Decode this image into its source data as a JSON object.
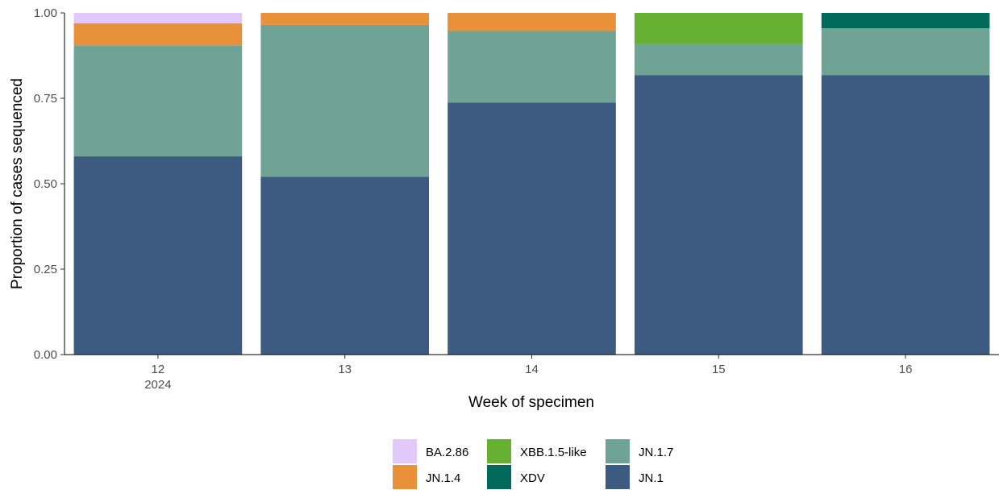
{
  "chart_data": {
    "type": "bar",
    "stacked": true,
    "title": "",
    "xlabel": "Week of specimen",
    "ylabel": "Proportion of cases sequenced",
    "ylim": [
      0,
      1
    ],
    "yticks": [
      "0.00",
      "0.25",
      "0.50",
      "0.75",
      "1.00"
    ],
    "categories": [
      "12",
      "13",
      "14",
      "15",
      "16"
    ],
    "category_sublabels": [
      "2024",
      "",
      "",
      "",
      ""
    ],
    "grid": false,
    "legend_position": "bottom",
    "series": [
      {
        "name": "JN.1",
        "color": "#3d5a80",
        "values": [
          0.58,
          0.52,
          0.737,
          0.818,
          0.818
        ]
      },
      {
        "name": "JN.1.7",
        "color": "#6fa396",
        "values": [
          0.325,
          0.445,
          0.21,
          0.091,
          0.137
        ]
      },
      {
        "name": "XBB.1.5-like",
        "color": "#66b032",
        "values": [
          0,
          0,
          0,
          0.091,
          0
        ]
      },
      {
        "name": "XDV",
        "color": "#00695a",
        "values": [
          0,
          0,
          0,
          0,
          0.045
        ]
      },
      {
        "name": "JN.1.4",
        "color": "#e8913a",
        "values": [
          0.065,
          0.035,
          0.053,
          0,
          0
        ]
      },
      {
        "name": "BA.2.86",
        "color": "#e3c8fb",
        "values": [
          0.03,
          0,
          0,
          0,
          0
        ]
      }
    ],
    "legend_order": [
      "BA.2.86",
      "JN.1.4",
      "XBB.1.5-like",
      "XDV",
      "JN.1.7",
      "JN.1"
    ]
  }
}
